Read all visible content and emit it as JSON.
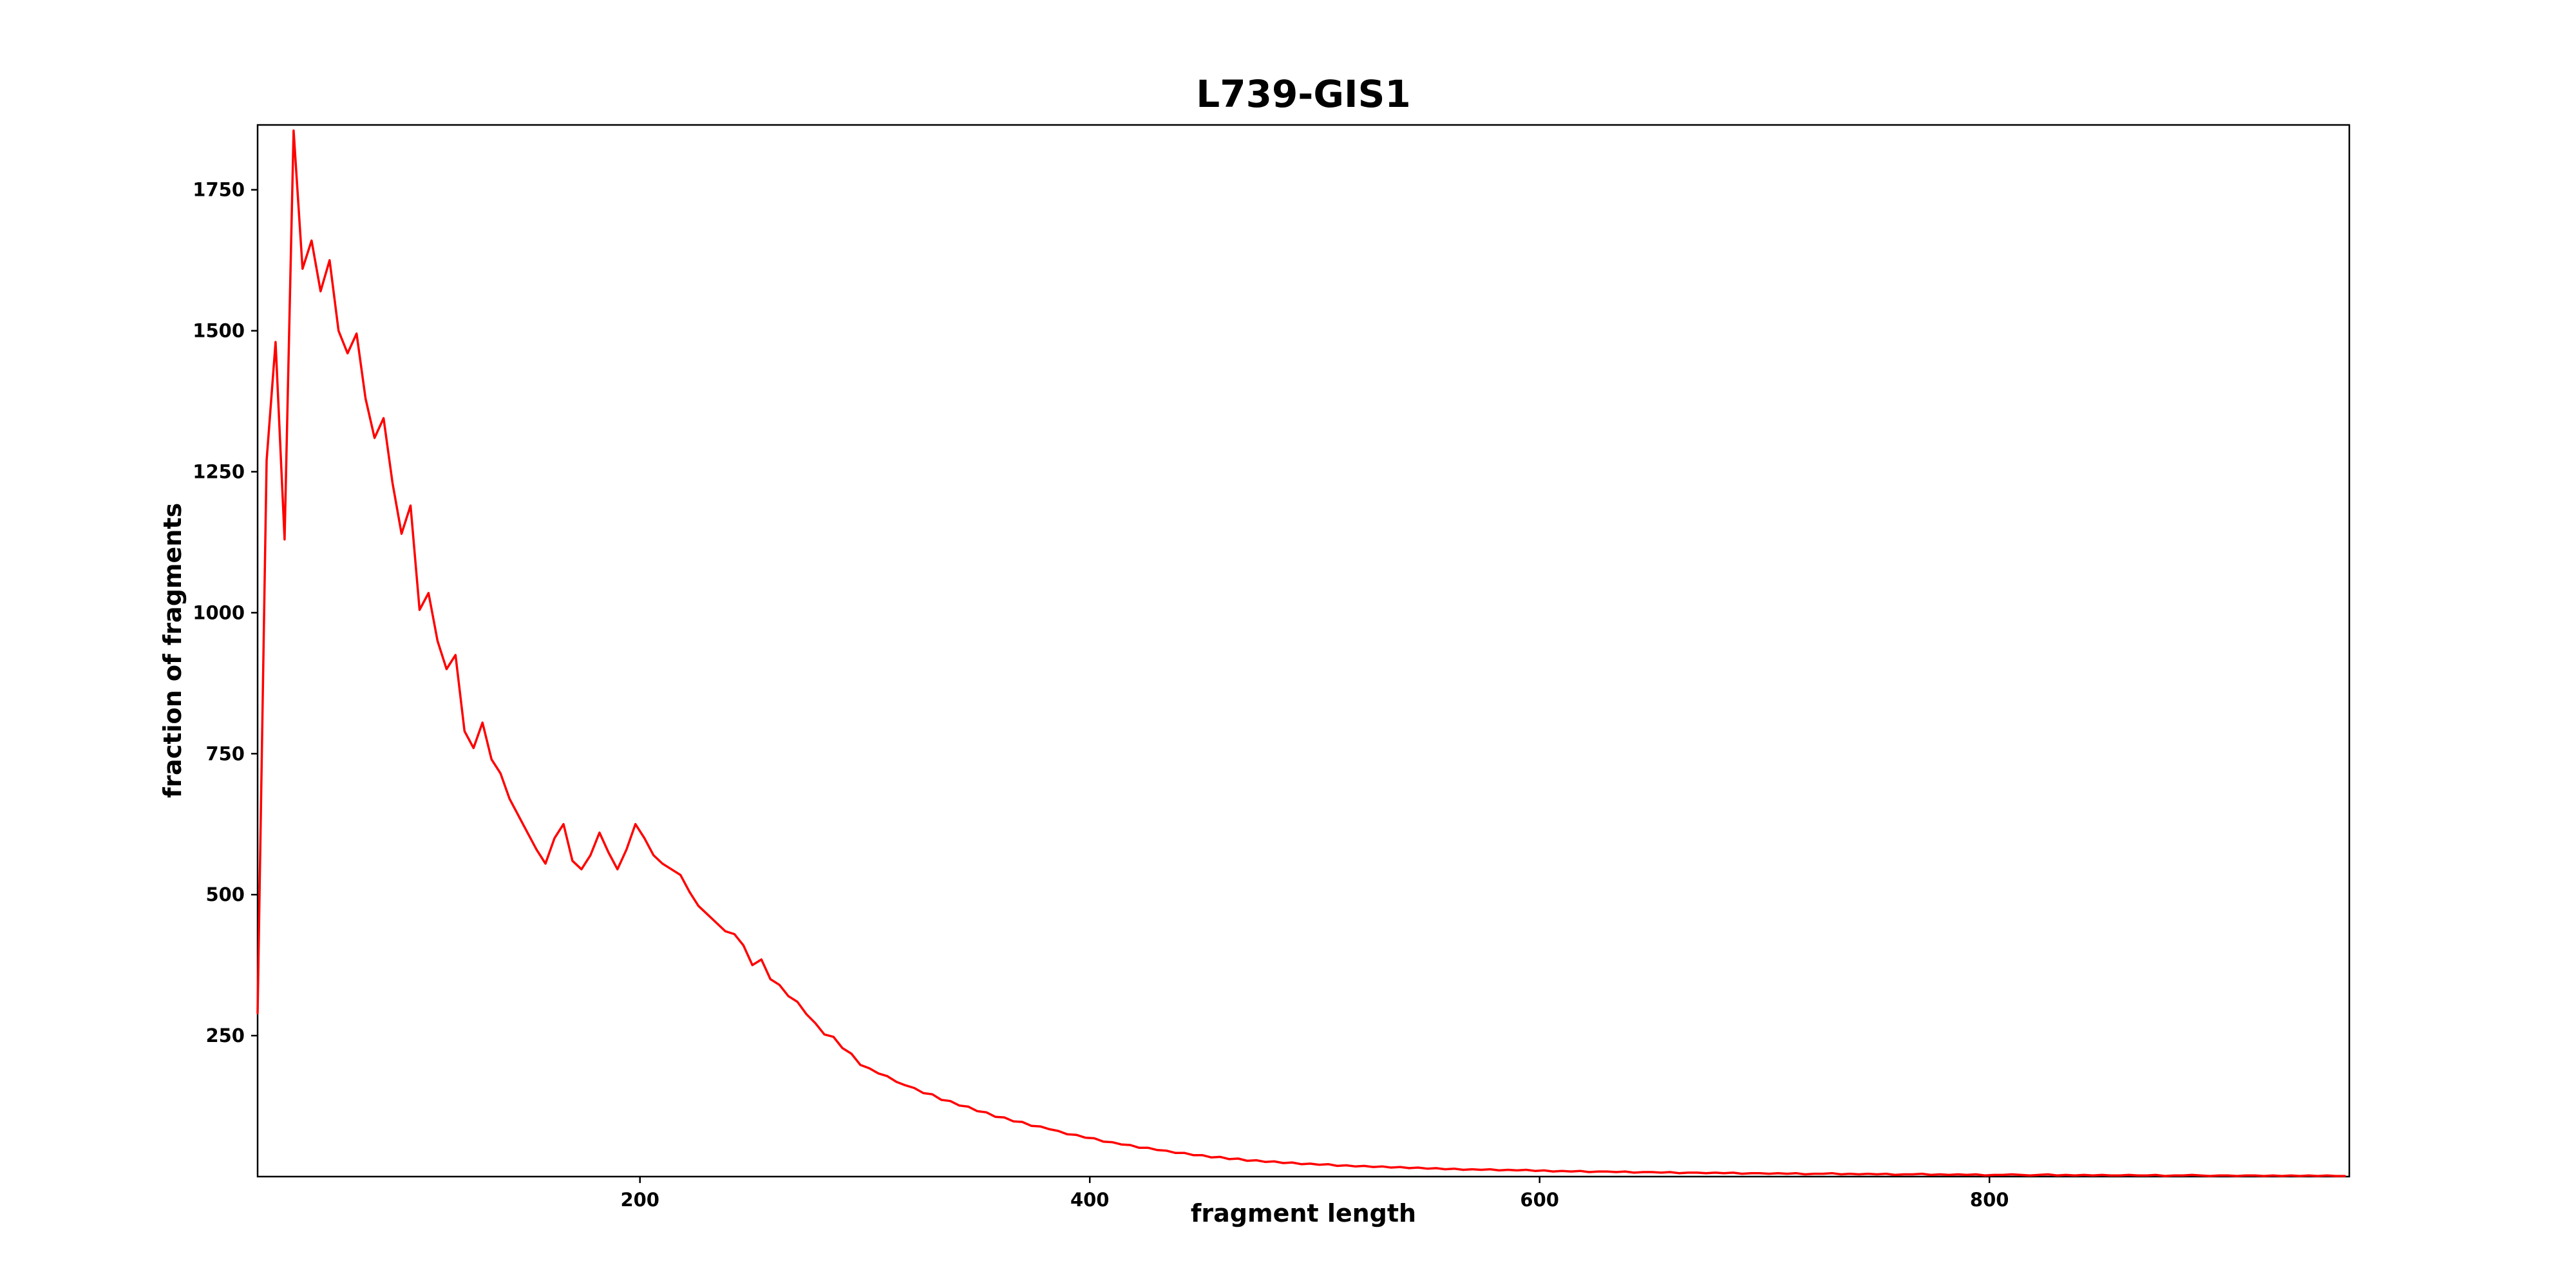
{
  "chart_data": {
    "type": "line",
    "title": "L739-GIS1",
    "xlabel": "fragment length",
    "ylabel": "fraction of fragments",
    "xlim": [
      30,
      960
    ],
    "ylim": [
      0,
      1865
    ],
    "x_ticks": [
      200,
      400,
      600,
      800
    ],
    "y_ticks": [
      250,
      500,
      750,
      1000,
      1250,
      1500,
      1750
    ],
    "grid": false,
    "x_start": 30,
    "x_step": 4,
    "series": [
      {
        "name": "L739-GIS1",
        "color": "#ff0000",
        "values": [
          290,
          1270,
          1480,
          1130,
          1855,
          1610,
          1660,
          1570,
          1625,
          1500,
          1460,
          1495,
          1380,
          1310,
          1345,
          1230,
          1140,
          1190,
          1005,
          1035,
          950,
          900,
          925,
          790,
          760,
          805,
          740,
          715,
          670,
          640,
          610,
          580,
          555,
          600,
          625,
          560,
          545,
          570,
          610,
          575,
          545,
          580,
          625,
          600,
          570,
          555,
          545,
          535,
          505,
          480,
          465,
          450,
          435,
          430,
          410,
          375,
          385,
          350,
          340,
          320,
          310,
          288,
          272,
          252,
          248,
          228,
          218,
          198,
          192,
          183,
          178,
          168,
          162,
          157,
          148,
          146,
          136,
          134,
          126,
          124,
          116,
          114,
          106,
          105,
          98,
          97,
          90,
          89,
          84,
          81,
          75,
          74,
          69,
          68,
          62,
          61,
          57,
          56,
          51,
          51,
          47,
          46,
          42,
          42,
          38,
          38,
          34,
          35,
          31,
          32,
          28,
          29,
          26,
          27,
          24,
          25,
          22,
          23,
          21,
          22,
          19,
          20,
          18,
          19,
          17,
          18,
          16,
          17,
          15,
          16,
          14,
          15,
          13,
          14,
          12,
          13,
          12,
          13,
          11,
          12,
          11,
          12,
          10,
          11,
          9,
          10,
          9,
          10,
          8,
          9,
          9,
          8,
          9,
          7,
          8,
          8,
          7,
          8,
          6,
          7,
          7,
          6,
          7,
          6,
          7,
          5,
          6,
          6,
          5,
          6,
          5,
          6,
          4,
          5,
          5,
          6,
          4,
          5,
          4,
          5,
          4,
          5,
          3,
          4,
          4,
          5,
          3,
          4,
          3,
          4,
          3,
          4,
          2,
          3,
          3,
          4,
          3,
          2,
          3,
          4,
          2,
          3,
          2,
          3,
          2,
          3,
          2,
          2,
          3,
          2,
          2,
          3,
          1,
          2,
          2,
          3,
          2,
          1,
          2,
          2,
          1,
          2,
          2,
          1,
          2,
          1,
          2,
          1,
          2,
          1,
          2,
          1,
          1
        ]
      }
    ]
  }
}
